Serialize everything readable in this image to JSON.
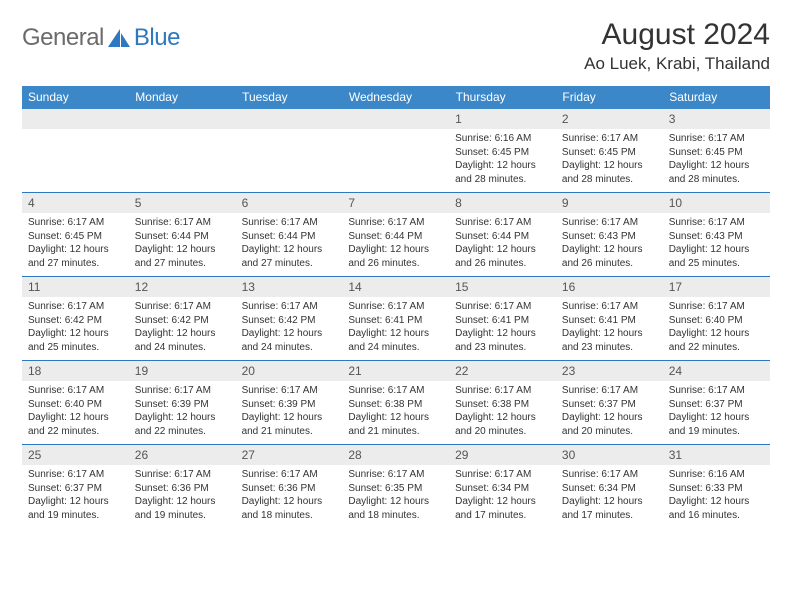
{
  "brand": {
    "part1": "General",
    "part2": "Blue"
  },
  "title": "August 2024",
  "location": "Ao Luek, Krabi, Thailand",
  "colors": {
    "header_bg": "#3b87c8",
    "header_text": "#ffffff",
    "daynum_bg": "#ececec",
    "rule": "#2e78c2",
    "brand_gray": "#6b6b6b",
    "brand_blue": "#2e78c2",
    "page_bg": "#ffffff",
    "body_text": "#333333"
  },
  "typography": {
    "title_fontsize": 30,
    "location_fontsize": 17,
    "dow_fontsize": 12,
    "daynum_fontsize": 12,
    "detail_fontsize": 10
  },
  "dow": [
    "Sunday",
    "Monday",
    "Tuesday",
    "Wednesday",
    "Thursday",
    "Friday",
    "Saturday"
  ],
  "weeks": [
    [
      null,
      null,
      null,
      null,
      {
        "n": "1",
        "sr": "Sunrise: 6:16 AM",
        "ss": "Sunset: 6:45 PM",
        "d1": "Daylight: 12 hours",
        "d2": "and 28 minutes."
      },
      {
        "n": "2",
        "sr": "Sunrise: 6:17 AM",
        "ss": "Sunset: 6:45 PM",
        "d1": "Daylight: 12 hours",
        "d2": "and 28 minutes."
      },
      {
        "n": "3",
        "sr": "Sunrise: 6:17 AM",
        "ss": "Sunset: 6:45 PM",
        "d1": "Daylight: 12 hours",
        "d2": "and 28 minutes."
      }
    ],
    [
      {
        "n": "4",
        "sr": "Sunrise: 6:17 AM",
        "ss": "Sunset: 6:45 PM",
        "d1": "Daylight: 12 hours",
        "d2": "and 27 minutes."
      },
      {
        "n": "5",
        "sr": "Sunrise: 6:17 AM",
        "ss": "Sunset: 6:44 PM",
        "d1": "Daylight: 12 hours",
        "d2": "and 27 minutes."
      },
      {
        "n": "6",
        "sr": "Sunrise: 6:17 AM",
        "ss": "Sunset: 6:44 PM",
        "d1": "Daylight: 12 hours",
        "d2": "and 27 minutes."
      },
      {
        "n": "7",
        "sr": "Sunrise: 6:17 AM",
        "ss": "Sunset: 6:44 PM",
        "d1": "Daylight: 12 hours",
        "d2": "and 26 minutes."
      },
      {
        "n": "8",
        "sr": "Sunrise: 6:17 AM",
        "ss": "Sunset: 6:44 PM",
        "d1": "Daylight: 12 hours",
        "d2": "and 26 minutes."
      },
      {
        "n": "9",
        "sr": "Sunrise: 6:17 AM",
        "ss": "Sunset: 6:43 PM",
        "d1": "Daylight: 12 hours",
        "d2": "and 26 minutes."
      },
      {
        "n": "10",
        "sr": "Sunrise: 6:17 AM",
        "ss": "Sunset: 6:43 PM",
        "d1": "Daylight: 12 hours",
        "d2": "and 25 minutes."
      }
    ],
    [
      {
        "n": "11",
        "sr": "Sunrise: 6:17 AM",
        "ss": "Sunset: 6:42 PM",
        "d1": "Daylight: 12 hours",
        "d2": "and 25 minutes."
      },
      {
        "n": "12",
        "sr": "Sunrise: 6:17 AM",
        "ss": "Sunset: 6:42 PM",
        "d1": "Daylight: 12 hours",
        "d2": "and 24 minutes."
      },
      {
        "n": "13",
        "sr": "Sunrise: 6:17 AM",
        "ss": "Sunset: 6:42 PM",
        "d1": "Daylight: 12 hours",
        "d2": "and 24 minutes."
      },
      {
        "n": "14",
        "sr": "Sunrise: 6:17 AM",
        "ss": "Sunset: 6:41 PM",
        "d1": "Daylight: 12 hours",
        "d2": "and 24 minutes."
      },
      {
        "n": "15",
        "sr": "Sunrise: 6:17 AM",
        "ss": "Sunset: 6:41 PM",
        "d1": "Daylight: 12 hours",
        "d2": "and 23 minutes."
      },
      {
        "n": "16",
        "sr": "Sunrise: 6:17 AM",
        "ss": "Sunset: 6:41 PM",
        "d1": "Daylight: 12 hours",
        "d2": "and 23 minutes."
      },
      {
        "n": "17",
        "sr": "Sunrise: 6:17 AM",
        "ss": "Sunset: 6:40 PM",
        "d1": "Daylight: 12 hours",
        "d2": "and 22 minutes."
      }
    ],
    [
      {
        "n": "18",
        "sr": "Sunrise: 6:17 AM",
        "ss": "Sunset: 6:40 PM",
        "d1": "Daylight: 12 hours",
        "d2": "and 22 minutes."
      },
      {
        "n": "19",
        "sr": "Sunrise: 6:17 AM",
        "ss": "Sunset: 6:39 PM",
        "d1": "Daylight: 12 hours",
        "d2": "and 22 minutes."
      },
      {
        "n": "20",
        "sr": "Sunrise: 6:17 AM",
        "ss": "Sunset: 6:39 PM",
        "d1": "Daylight: 12 hours",
        "d2": "and 21 minutes."
      },
      {
        "n": "21",
        "sr": "Sunrise: 6:17 AM",
        "ss": "Sunset: 6:38 PM",
        "d1": "Daylight: 12 hours",
        "d2": "and 21 minutes."
      },
      {
        "n": "22",
        "sr": "Sunrise: 6:17 AM",
        "ss": "Sunset: 6:38 PM",
        "d1": "Daylight: 12 hours",
        "d2": "and 20 minutes."
      },
      {
        "n": "23",
        "sr": "Sunrise: 6:17 AM",
        "ss": "Sunset: 6:37 PM",
        "d1": "Daylight: 12 hours",
        "d2": "and 20 minutes."
      },
      {
        "n": "24",
        "sr": "Sunrise: 6:17 AM",
        "ss": "Sunset: 6:37 PM",
        "d1": "Daylight: 12 hours",
        "d2": "and 19 minutes."
      }
    ],
    [
      {
        "n": "25",
        "sr": "Sunrise: 6:17 AM",
        "ss": "Sunset: 6:37 PM",
        "d1": "Daylight: 12 hours",
        "d2": "and 19 minutes."
      },
      {
        "n": "26",
        "sr": "Sunrise: 6:17 AM",
        "ss": "Sunset: 6:36 PM",
        "d1": "Daylight: 12 hours",
        "d2": "and 19 minutes."
      },
      {
        "n": "27",
        "sr": "Sunrise: 6:17 AM",
        "ss": "Sunset: 6:36 PM",
        "d1": "Daylight: 12 hours",
        "d2": "and 18 minutes."
      },
      {
        "n": "28",
        "sr": "Sunrise: 6:17 AM",
        "ss": "Sunset: 6:35 PM",
        "d1": "Daylight: 12 hours",
        "d2": "and 18 minutes."
      },
      {
        "n": "29",
        "sr": "Sunrise: 6:17 AM",
        "ss": "Sunset: 6:34 PM",
        "d1": "Daylight: 12 hours",
        "d2": "and 17 minutes."
      },
      {
        "n": "30",
        "sr": "Sunrise: 6:17 AM",
        "ss": "Sunset: 6:34 PM",
        "d1": "Daylight: 12 hours",
        "d2": "and 17 minutes."
      },
      {
        "n": "31",
        "sr": "Sunrise: 6:16 AM",
        "ss": "Sunset: 6:33 PM",
        "d1": "Daylight: 12 hours",
        "d2": "and 16 minutes."
      }
    ]
  ]
}
